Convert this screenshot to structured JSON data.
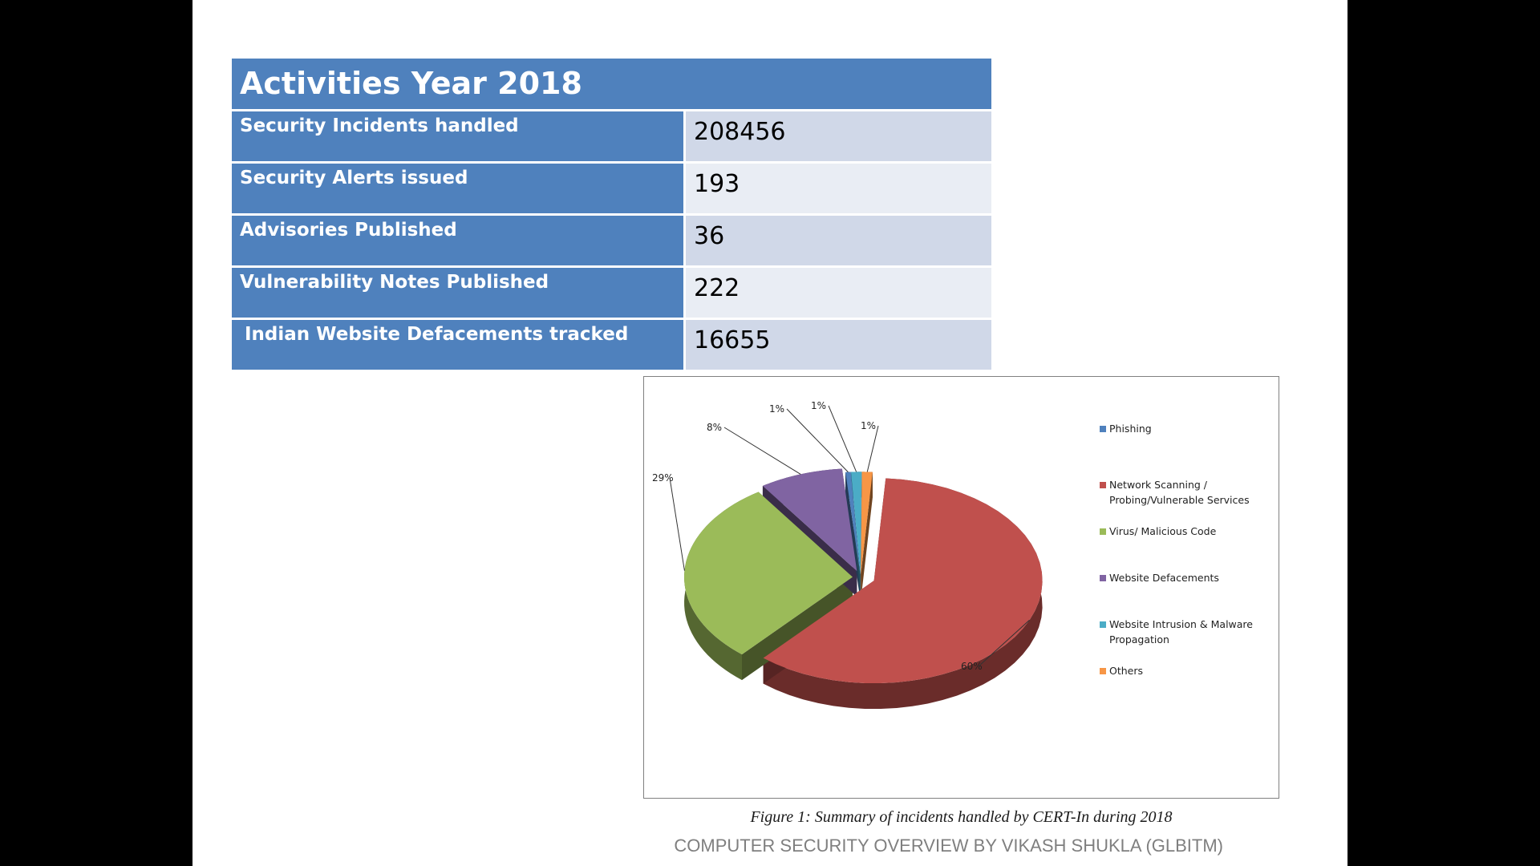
{
  "table": {
    "title": "Activities Year 2018",
    "rows": [
      {
        "label": "Security Incidents handled",
        "value": "208456"
      },
      {
        "label": "Security Alerts issued",
        "value": "193"
      },
      {
        "label": "Advisories Published",
        "value": "36"
      },
      {
        "label": "Vulnerability Notes Published",
        "value": "222"
      },
      {
        "label": "Indian Website Defacements tracked",
        "value": "16655"
      }
    ]
  },
  "chart_data": {
    "type": "pie",
    "categories": [
      "Phishing",
      "Network Scanning / Probing/Vulnerable Services",
      "Virus/ Malicious Code",
      "Website Defacements",
      "Website Intrusion & Malware Propagation",
      "Others"
    ],
    "legend_lines": [
      [
        "Phishing"
      ],
      [
        "Network Scanning /",
        "Probing/Vulnerable Services"
      ],
      [
        "Virus/ Malicious Code"
      ],
      [
        "Website Defacements"
      ],
      [
        "Website Intrusion & Malware",
        "Propagation"
      ],
      [
        "Others"
      ]
    ],
    "values": [
      0.5,
      60,
      29,
      8,
      1,
      1
    ],
    "data_labels": [
      "1%",
      "60%",
      "29%",
      "8%",
      "1%",
      "1%"
    ],
    "colors": [
      "#4f81bd",
      "#c0504d",
      "#9bbb59",
      "#8064a2",
      "#4bacc6",
      "#f79646"
    ],
    "legend_position": "right",
    "caption": "Figure 1: Summary of incidents handled by CERT-In during 2018"
  },
  "footer": {
    "text": "COMPUTER SECURITY OVERVIEW BY VIKASH SHUKLA (GLBITM)"
  }
}
